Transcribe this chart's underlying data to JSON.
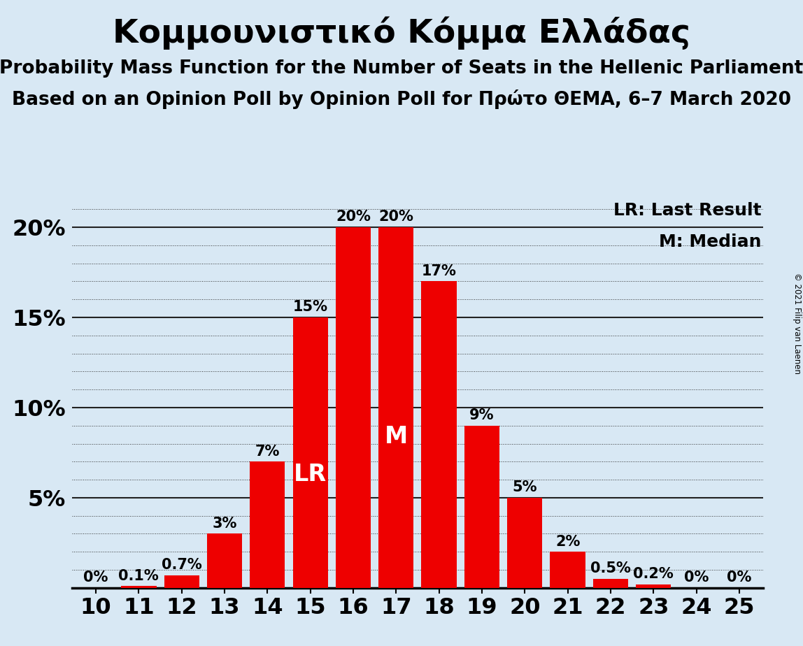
{
  "title": "Κομμουνιστικό Κόμμα Ελλάδας",
  "subtitle1": "Probability Mass Function for the Number of Seats in the Hellenic Parliament",
  "subtitle2": "Based on an Opinion Poll by Opinion Poll for Πρώτο ΘΕΜΑ, 6–7 March 2020",
  "copyright": "© 2021 Filip van Laenen",
  "seats": [
    10,
    11,
    12,
    13,
    14,
    15,
    16,
    17,
    18,
    19,
    20,
    21,
    22,
    23,
    24,
    25
  ],
  "probabilities": [
    0.0,
    0.1,
    0.7,
    3.0,
    7.0,
    15.0,
    20.0,
    20.0,
    17.0,
    9.0,
    5.0,
    2.0,
    0.5,
    0.2,
    0.0,
    0.0
  ],
  "bar_color": "#ee0000",
  "background_color": "#d8e8f4",
  "bar_labels": [
    "0%",
    "0.1%",
    "0.7%",
    "3%",
    "7%",
    "15%",
    "20%",
    "20%",
    "17%",
    "9%",
    "5%",
    "2%",
    "0.5%",
    "0.2%",
    "0%",
    "0%"
  ],
  "lr_seat": 15,
  "median_seat": 17,
  "lr_label": "LR",
  "median_label": "M",
  "legend_lr": "LR: Last Result",
  "legend_m": "M: Median",
  "ylim": [
    0,
    21.5
  ],
  "yticks": [
    0,
    5,
    10,
    15,
    20
  ],
  "ytick_labels": [
    "",
    "5%",
    "10%",
    "15%",
    "20%"
  ],
  "title_fontsize": 34,
  "subtitle_fontsize": 19,
  "bar_label_fontsize": 15,
  "axis_tick_fontsize": 23,
  "legend_fontsize": 18,
  "inline_label_fontsize": 24
}
